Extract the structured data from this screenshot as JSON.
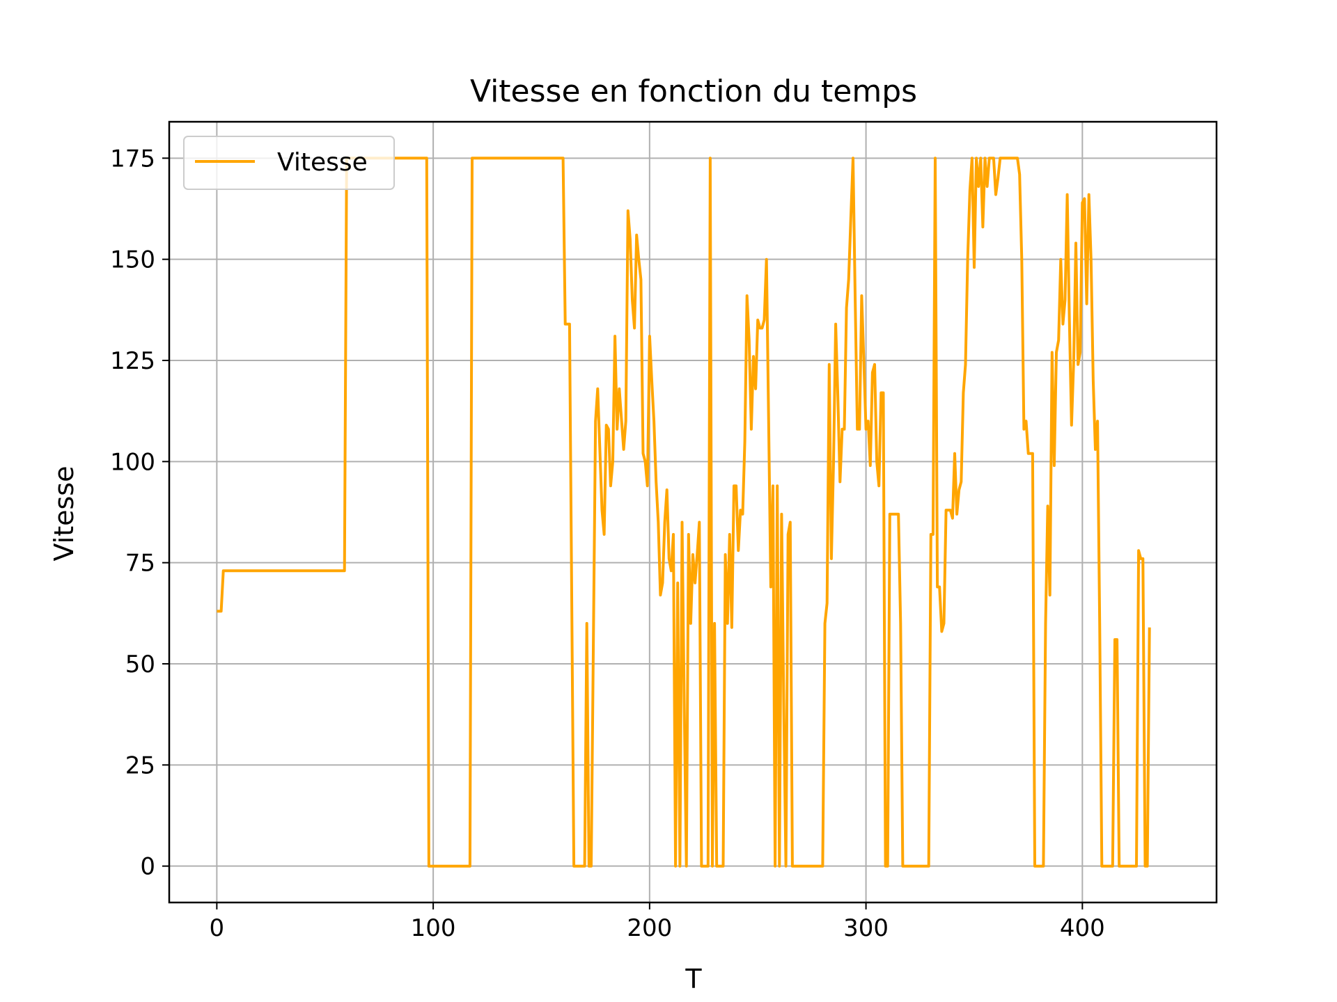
{
  "chart_data": {
    "type": "line",
    "title": "Vitesse en fonction du temps",
    "xlabel": "T",
    "ylabel": "Vitesse",
    "xlim": [
      -22,
      462
    ],
    "ylim": [
      -9,
      184
    ],
    "xticks": [
      0,
      100,
      200,
      300,
      400
    ],
    "yticks": [
      0,
      25,
      50,
      75,
      100,
      125,
      150,
      175
    ],
    "grid": true,
    "legend": "top-left",
    "series": [
      {
        "name": "Vitesse",
        "color": "#ffa500",
        "points": [
          [
            0,
            63
          ],
          [
            2,
            63
          ],
          [
            3,
            73
          ],
          [
            59,
            73
          ],
          [
            60,
            175
          ],
          [
            97,
            175
          ],
          [
            98,
            0
          ],
          [
            117,
            0
          ],
          [
            118,
            175
          ],
          [
            160,
            175
          ],
          [
            161,
            134
          ],
          [
            163,
            134
          ],
          [
            165,
            0
          ],
          [
            170,
            0
          ],
          [
            171,
            60
          ],
          [
            172,
            0
          ],
          [
            173,
            0
          ],
          [
            175,
            110
          ],
          [
            176,
            118
          ],
          [
            178,
            88
          ],
          [
            179,
            82
          ],
          [
            180,
            109
          ],
          [
            181,
            108
          ],
          [
            182,
            94
          ],
          [
            183,
            100
          ],
          [
            184,
            131
          ],
          [
            185,
            108
          ],
          [
            186,
            118
          ],
          [
            188,
            103
          ],
          [
            189,
            110
          ],
          [
            190,
            162
          ],
          [
            191,
            155
          ],
          [
            192,
            140
          ],
          [
            193,
            133
          ],
          [
            194,
            156
          ],
          [
            195,
            150
          ],
          [
            196,
            145
          ],
          [
            197,
            102
          ],
          [
            198,
            100
          ],
          [
            199,
            94
          ],
          [
            200,
            131
          ],
          [
            201,
            120
          ],
          [
            202,
            110
          ],
          [
            203,
            95
          ],
          [
            204,
            85
          ],
          [
            205,
            67
          ],
          [
            206,
            70
          ],
          [
            207,
            85
          ],
          [
            208,
            93
          ],
          [
            209,
            76
          ],
          [
            210,
            73
          ],
          [
            211,
            82
          ],
          [
            212,
            0
          ],
          [
            213,
            70
          ],
          [
            214,
            0
          ],
          [
            215,
            85
          ],
          [
            216,
            40
          ],
          [
            217,
            0
          ],
          [
            218,
            82
          ],
          [
            219,
            60
          ],
          [
            220,
            77
          ],
          [
            221,
            70
          ],
          [
            222,
            77
          ],
          [
            223,
            85
          ],
          [
            224,
            0
          ],
          [
            227,
            0
          ],
          [
            228,
            175
          ],
          [
            229,
            0
          ],
          [
            230,
            60
          ],
          [
            231,
            0
          ],
          [
            234,
            0
          ],
          [
            235,
            77
          ],
          [
            236,
            60
          ],
          [
            237,
            82
          ],
          [
            238,
            59
          ],
          [
            239,
            94
          ],
          [
            240,
            94
          ],
          [
            241,
            78
          ],
          [
            242,
            88
          ],
          [
            243,
            87
          ],
          [
            244,
            105
          ],
          [
            245,
            141
          ],
          [
            246,
            130
          ],
          [
            247,
            108
          ],
          [
            248,
            126
          ],
          [
            249,
            118
          ],
          [
            250,
            135
          ],
          [
            251,
            133
          ],
          [
            252,
            133
          ],
          [
            253,
            135
          ],
          [
            254,
            150
          ],
          [
            255,
            110
          ],
          [
            256,
            69
          ],
          [
            257,
            94
          ],
          [
            258,
            0
          ],
          [
            259,
            94
          ],
          [
            260,
            0
          ],
          [
            261,
            87
          ],
          [
            262,
            40
          ],
          [
            263,
            0
          ],
          [
            264,
            82
          ],
          [
            265,
            85
          ],
          [
            266,
            0
          ],
          [
            280,
            0
          ],
          [
            281,
            60
          ],
          [
            282,
            65
          ],
          [
            283,
            124
          ],
          [
            284,
            76
          ],
          [
            285,
            100
          ],
          [
            286,
            134
          ],
          [
            287,
            116
          ],
          [
            288,
            95
          ],
          [
            289,
            108
          ],
          [
            290,
            108
          ],
          [
            291,
            138
          ],
          [
            292,
            145
          ],
          [
            293,
            160
          ],
          [
            294,
            175
          ],
          [
            295,
            140
          ],
          [
            296,
            108
          ],
          [
            297,
            108
          ],
          [
            298,
            141
          ],
          [
            299,
            125
          ],
          [
            300,
            108
          ],
          [
            301,
            110
          ],
          [
            302,
            99
          ],
          [
            303,
            122
          ],
          [
            304,
            124
          ],
          [
            305,
            100
          ],
          [
            306,
            94
          ],
          [
            307,
            117
          ],
          [
            308,
            117
          ],
          [
            309,
            0
          ],
          [
            310,
            0
          ],
          [
            311,
            87
          ],
          [
            315,
            87
          ],
          [
            316,
            60
          ],
          [
            317,
            0
          ],
          [
            329,
            0
          ],
          [
            330,
            82
          ],
          [
            331,
            82
          ],
          [
            332,
            175
          ],
          [
            333,
            69
          ],
          [
            334,
            69
          ],
          [
            335,
            58
          ],
          [
            336,
            60
          ],
          [
            337,
            88
          ],
          [
            339,
            88
          ],
          [
            340,
            86
          ],
          [
            341,
            102
          ],
          [
            342,
            87
          ],
          [
            343,
            93
          ],
          [
            344,
            95
          ],
          [
            345,
            117
          ],
          [
            346,
            124
          ],
          [
            347,
            150
          ],
          [
            348,
            167
          ],
          [
            349,
            175
          ],
          [
            350,
            148
          ],
          [
            351,
            175
          ],
          [
            352,
            168
          ],
          [
            353,
            175
          ],
          [
            354,
            158
          ],
          [
            355,
            175
          ],
          [
            356,
            168
          ],
          [
            357,
            175
          ],
          [
            359,
            175
          ],
          [
            360,
            166
          ],
          [
            361,
            170
          ],
          [
            362,
            175
          ],
          [
            370,
            175
          ],
          [
            371,
            171
          ],
          [
            372,
            150
          ],
          [
            373,
            108
          ],
          [
            374,
            110
          ],
          [
            375,
            102
          ],
          [
            377,
            102
          ],
          [
            378,
            0
          ],
          [
            382,
            0
          ],
          [
            383,
            60
          ],
          [
            384,
            89
          ],
          [
            385,
            67
          ],
          [
            386,
            127
          ],
          [
            387,
            99
          ],
          [
            388,
            127
          ],
          [
            389,
            130
          ],
          [
            390,
            150
          ],
          [
            391,
            134
          ],
          [
            392,
            140
          ],
          [
            393,
            166
          ],
          [
            394,
            135
          ],
          [
            395,
            109
          ],
          [
            396,
            125
          ],
          [
            397,
            154
          ],
          [
            398,
            124
          ],
          [
            399,
            127
          ],
          [
            400,
            164
          ],
          [
            401,
            165
          ],
          [
            402,
            139
          ],
          [
            403,
            166
          ],
          [
            404,
            150
          ],
          [
            405,
            120
          ],
          [
            406,
            103
          ],
          [
            407,
            110
          ],
          [
            408,
            60
          ],
          [
            409,
            0
          ],
          [
            414,
            0
          ],
          [
            415,
            56
          ],
          [
            416,
            56
          ],
          [
            417,
            0
          ],
          [
            425,
            0
          ],
          [
            426,
            78
          ],
          [
            427,
            76
          ],
          [
            428,
            76
          ],
          [
            429,
            0
          ],
          [
            430,
            0
          ],
          [
            431,
            59
          ]
        ]
      }
    ]
  }
}
